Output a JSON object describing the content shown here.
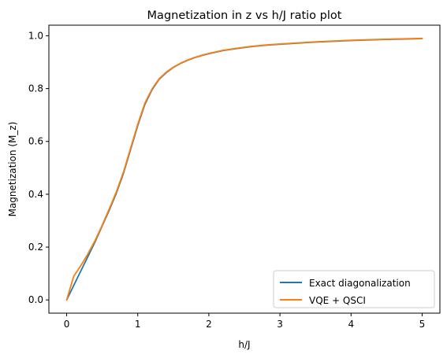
{
  "chart_data": {
    "type": "line",
    "title": "Magnetization in z vs h/J ratio plot",
    "xlabel": "h/J",
    "ylabel": "Magnetization (M_z)",
    "xlim": [
      -0.25,
      5.25
    ],
    "ylim": [
      -0.05,
      1.04
    ],
    "xticks": [
      0,
      1,
      2,
      3,
      4,
      5
    ],
    "yticks": [
      0.0,
      0.2,
      0.4,
      0.6,
      0.8,
      1.0
    ],
    "xtick_labels": [
      "0",
      "1",
      "2",
      "3",
      "4",
      "5"
    ],
    "ytick_labels": [
      "0.0",
      "0.2",
      "0.4",
      "0.6",
      "0.8",
      "1.0"
    ],
    "grid": false,
    "legend_position": "lower-right",
    "series": [
      {
        "name": "Exact diagonalization",
        "color": "#1f77b4",
        "x": [
          0,
          0.1,
          0.2,
          0.3,
          0.4,
          0.5,
          0.6,
          0.7,
          0.8,
          0.9,
          1.0,
          1.1,
          1.2,
          1.3,
          1.4,
          1.5,
          1.6,
          1.7,
          1.8,
          1.9,
          2.0,
          2.2,
          2.4,
          2.6,
          2.8,
          3.0,
          3.5,
          4.0,
          4.5,
          5.0
        ],
        "y": [
          0.0,
          0.055,
          0.11,
          0.165,
          0.22,
          0.28,
          0.34,
          0.405,
          0.48,
          0.57,
          0.66,
          0.74,
          0.795,
          0.835,
          0.86,
          0.88,
          0.895,
          0.907,
          0.917,
          0.925,
          0.932,
          0.944,
          0.952,
          0.959,
          0.964,
          0.968,
          0.976,
          0.982,
          0.986,
          0.989
        ]
      },
      {
        "name": "VQE + QSCI",
        "color": "#ff7f0e",
        "x": [
          0,
          0.1,
          0.2,
          0.3,
          0.4,
          0.5,
          0.6,
          0.7,
          0.8,
          0.9,
          1.0,
          1.1,
          1.2,
          1.3,
          1.4,
          1.5,
          1.6,
          1.7,
          1.8,
          1.9,
          2.0,
          2.2,
          2.4,
          2.6,
          2.8,
          3.0,
          3.5,
          4.0,
          4.5,
          5.0
        ],
        "y": [
          0.0,
          0.09,
          0.13,
          0.175,
          0.225,
          0.283,
          0.345,
          0.41,
          0.485,
          0.575,
          0.665,
          0.745,
          0.798,
          0.837,
          0.862,
          0.881,
          0.896,
          0.908,
          0.918,
          0.926,
          0.933,
          0.945,
          0.953,
          0.96,
          0.965,
          0.969,
          0.977,
          0.983,
          0.987,
          0.99
        ]
      }
    ]
  }
}
